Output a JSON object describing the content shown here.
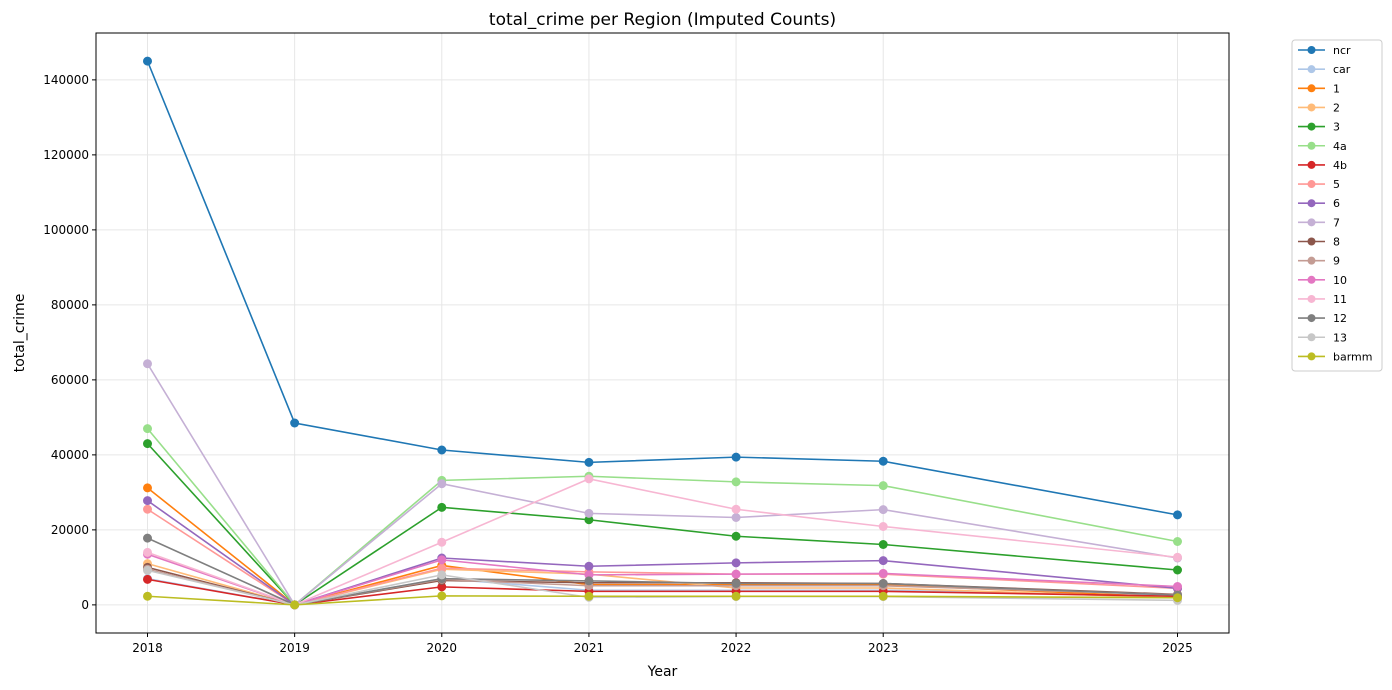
{
  "chart_data": {
    "type": "line",
    "title": "total_crime per Region (Imputed Counts)",
    "xlabel": "Year",
    "ylabel": "total_crime",
    "x": [
      2018,
      2019,
      2020,
      2021,
      2022,
      2023,
      2025
    ],
    "xlim": [
      2017.65,
      2025.35
    ],
    "ylim": [
      -7500,
      152500
    ],
    "yticks": [
      0,
      20000,
      40000,
      60000,
      80000,
      100000,
      120000,
      140000
    ],
    "grid": true,
    "legend_position": "outside-top-right",
    "series": [
      {
        "name": "ncr",
        "color": "#1f77b4",
        "values": [
          145000,
          48500,
          41300,
          38000,
          39400,
          38300,
          24000
        ]
      },
      {
        "name": "car",
        "color": "#aec7e8",
        "values": [
          7000,
          0,
          7000,
          3900,
          3900,
          3900,
          2400
        ]
      },
      {
        "name": "1",
        "color": "#ff7f0e",
        "values": [
          31200,
          0,
          10500,
          5400,
          5400,
          5400,
          2000
        ]
      },
      {
        "name": "2",
        "color": "#ffbb78",
        "values": [
          11000,
          0,
          9500,
          8200,
          4500,
          4500,
          1900
        ]
      },
      {
        "name": "3",
        "color": "#2ca02c",
        "values": [
          43000,
          0,
          26000,
          22700,
          18300,
          16100,
          9300
        ]
      },
      {
        "name": "4a",
        "color": "#98df8a",
        "values": [
          47000,
          0,
          33200,
          34300,
          32800,
          31800,
          16900
        ]
      },
      {
        "name": "4b",
        "color": "#d62728",
        "values": [
          6800,
          0,
          4800,
          3600,
          3600,
          3600,
          2300
        ]
      },
      {
        "name": "5",
        "color": "#ff9896",
        "values": [
          25500,
          0,
          9800,
          8800,
          8200,
          8200,
          4400
        ]
      },
      {
        "name": "6",
        "color": "#9467bd",
        "values": [
          27800,
          0,
          12500,
          10300,
          11200,
          11800,
          4400
        ]
      },
      {
        "name": "7",
        "color": "#c5b0d5",
        "values": [
          64300,
          0,
          32300,
          24400,
          23300,
          25400,
          12500
        ]
      },
      {
        "name": "8",
        "color": "#8c564b",
        "values": [
          10000,
          0,
          6500,
          5900,
          5900,
          5700,
          2800
        ]
      },
      {
        "name": "9",
        "color": "#c49c94",
        "values": [
          9500,
          0,
          6800,
          5100,
          5100,
          5100,
          2700
        ]
      },
      {
        "name": "10",
        "color": "#e377c2",
        "values": [
          13500,
          0,
          12000,
          8000,
          8200,
          8400,
          4900
        ]
      },
      {
        "name": "11",
        "color": "#f7b6d2",
        "values": [
          14000,
          0,
          16700,
          33600,
          25500,
          20900,
          12700
        ]
      },
      {
        "name": "12",
        "color": "#7f7f7f",
        "values": [
          17800,
          0,
          7000,
          6400,
          5700,
          5700,
          2600
        ]
      },
      {
        "name": "13",
        "color": "#c7c7c7",
        "values": [
          9200,
          0,
          8000,
          2000,
          2200,
          2200,
          1200
        ]
      },
      {
        "name": "barmm",
        "color": "#bcbd22",
        "values": [
          2300,
          0,
          2400,
          2300,
          2300,
          2300,
          1900
        ]
      }
    ]
  }
}
